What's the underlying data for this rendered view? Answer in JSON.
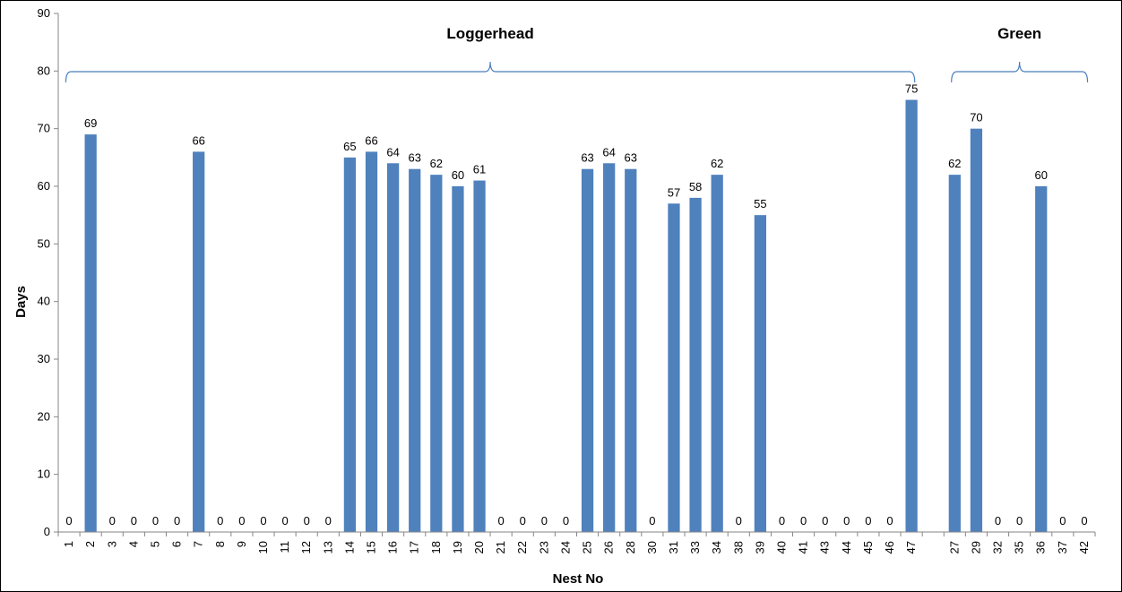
{
  "chart_data": {
    "type": "bar",
    "xlabel": "Nest No",
    "ylabel": "Days",
    "ylim": [
      0,
      90
    ],
    "yticks": [
      0,
      10,
      20,
      30,
      40,
      50,
      60,
      70,
      80,
      90
    ],
    "grid": false,
    "legend": "none",
    "bar_color": "#4f81bd",
    "groups": [
      {
        "label": "Loggerhead",
        "categories": [
          "1",
          "2",
          "3",
          "4",
          "5",
          "6",
          "7",
          "8",
          "9",
          "10",
          "11",
          "12",
          "13",
          "14",
          "15",
          "16",
          "17",
          "18",
          "19",
          "20",
          "21",
          "22",
          "23",
          "24",
          "25",
          "26",
          "28",
          "30",
          "31",
          "33",
          "34",
          "38",
          "39",
          "40",
          "41",
          "43",
          "44",
          "45",
          "46",
          "47"
        ],
        "values": [
          0,
          69,
          0,
          0,
          0,
          0,
          66,
          0,
          0,
          0,
          0,
          0,
          0,
          65,
          66,
          64,
          63,
          62,
          60,
          61,
          0,
          0,
          0,
          0,
          63,
          64,
          63,
          0,
          57,
          58,
          62,
          0,
          55,
          0,
          0,
          0,
          0,
          0,
          0,
          75
        ]
      },
      {
        "label": "Green",
        "categories": [
          "27",
          "29",
          "32",
          "35",
          "36",
          "37",
          "42"
        ],
        "values": [
          62,
          70,
          0,
          0,
          60,
          0,
          0
        ]
      }
    ]
  }
}
